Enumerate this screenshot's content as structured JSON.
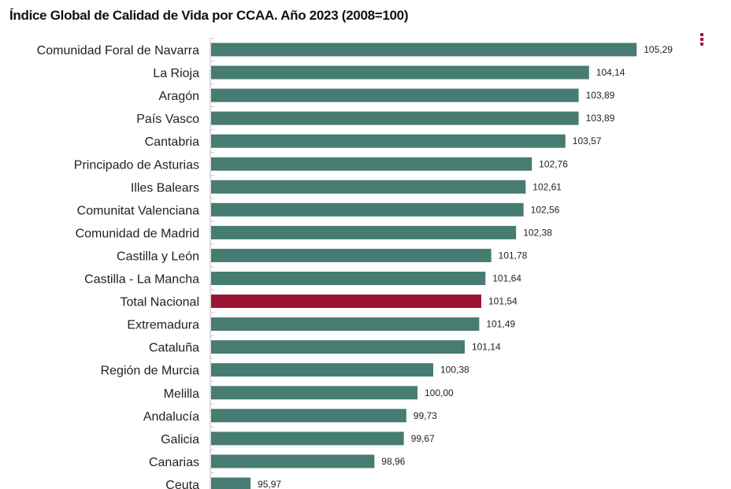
{
  "chart_data": {
    "type": "bar",
    "orientation": "horizontal",
    "title": "Índice Global de Calidad de Vida por CCAA. Año 2023 (2008=100)",
    "categories": [
      "Comunidad Foral de Navarra",
      "La Rioja",
      "Aragón",
      "País Vasco",
      "Cantabria",
      "Principado de Asturias",
      "Illes Balears",
      "Comunitat Valenciana",
      "Comunidad de Madrid",
      "Castilla y León",
      "Castilla - La Mancha",
      "Total Nacional",
      "Extremadura",
      "Cataluña",
      "Región de Murcia",
      "Melilla",
      "Andalucía",
      "Galicia",
      "Canarias",
      "Ceuta"
    ],
    "values": [
      105.29,
      104.14,
      103.89,
      103.89,
      103.57,
      102.76,
      102.61,
      102.56,
      102.38,
      101.78,
      101.64,
      101.54,
      101.49,
      101.14,
      100.38,
      100.0,
      99.73,
      99.67,
      98.96,
      95.97
    ],
    "data_labels": [
      "105,29",
      "104,14",
      "103,89",
      "103,89",
      "103,57",
      "102,76",
      "102,61",
      "102,56",
      "102,38",
      "101,78",
      "101,64",
      "101,54",
      "101,49",
      "101,14",
      "100,38",
      "100,00",
      "99,73",
      "99,67",
      "98,96",
      "95,97"
    ],
    "highlight": "Total Nacional",
    "xlim": [
      95,
      106
    ],
    "grid": false,
    "colors": {
      "bar": "#467c72",
      "highlight": "#9b1433"
    }
  },
  "menu_icon": "more-vertical-icon"
}
